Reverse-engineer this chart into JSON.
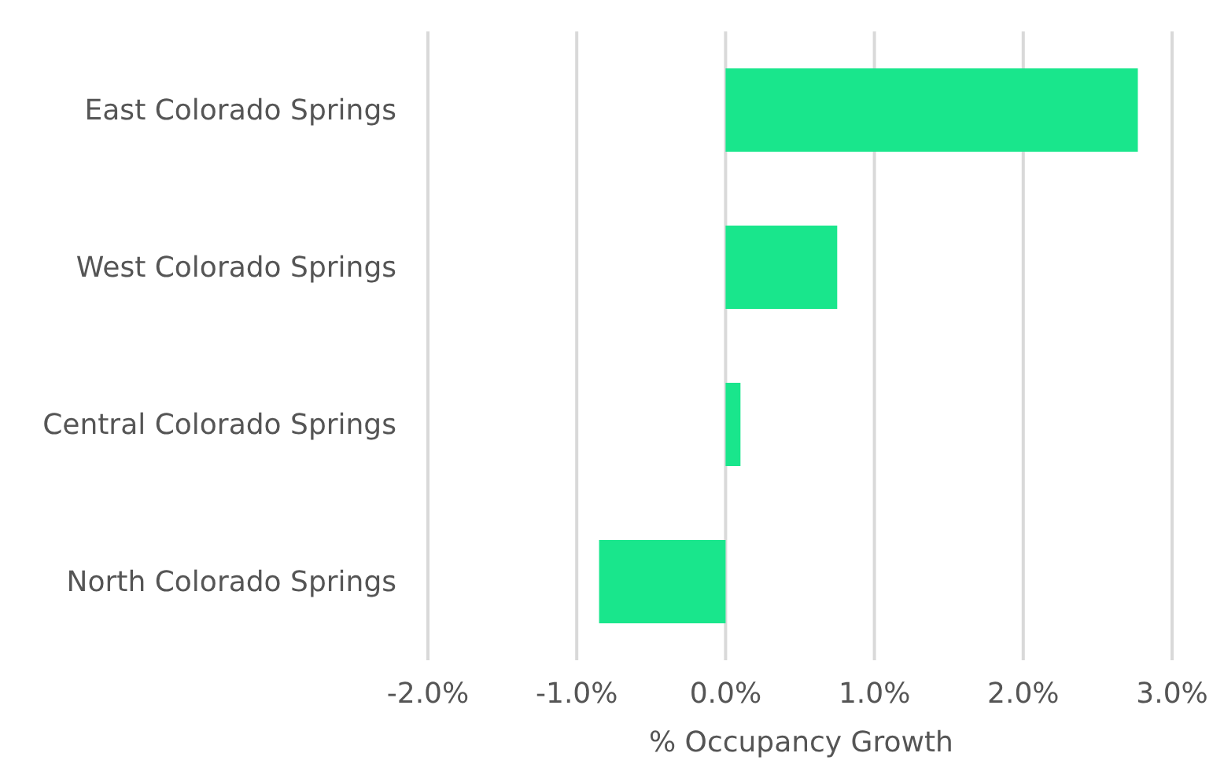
{
  "chart_data": {
    "type": "bar",
    "orientation": "horizontal",
    "xlabel": "% Occupancy Growth",
    "categories": [
      "East Colorado Springs",
      "West Colorado Springs",
      "Central Colorado Springs",
      "North Colorado Springs"
    ],
    "values": [
      2.77,
      0.75,
      0.1,
      -0.85
    ],
    "color": "#19e68c",
    "xlim": [
      -2,
      3
    ],
    "xticks": [
      {
        "value": -2,
        "label": "-2.0%"
      },
      {
        "value": -1,
        "label": "-1.0%"
      },
      {
        "value": 0,
        "label": "0.0%"
      },
      {
        "value": 1,
        "label": "1.0%"
      },
      {
        "value": 2,
        "label": "2.0%"
      },
      {
        "value": 3,
        "label": "3.0%"
      }
    ],
    "grid": "x"
  }
}
